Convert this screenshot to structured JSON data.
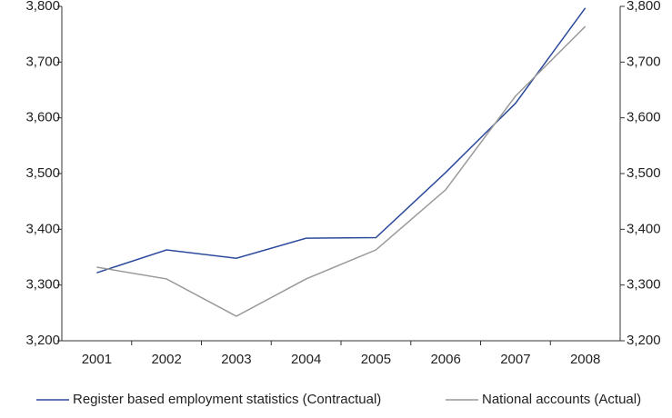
{
  "chart_data": {
    "type": "line",
    "categories": [
      "2001",
      "2002",
      "2003",
      "2004",
      "2005",
      "2006",
      "2007",
      "2008"
    ],
    "series": [
      {
        "name": "Register based employment statistics (Contractual)",
        "color": "#2b4a9b",
        "values": [
          3322,
          3363,
          3348,
          3384,
          3385,
          3502,
          3626,
          3797
        ]
      },
      {
        "name": "National accounts (Actual)",
        "color": "#999999",
        "values": [
          3332,
          3311,
          3244,
          3311,
          3363,
          3471,
          3639,
          3764
        ]
      }
    ],
    "ylim": [
      3200,
      3800
    ],
    "yticks": [
      {
        "value": 3200,
        "label": "3,200"
      },
      {
        "value": 3300,
        "label": "3,300"
      },
      {
        "value": 3400,
        "label": "3,400"
      },
      {
        "value": 3500,
        "label": "3,500"
      },
      {
        "value": 3600,
        "label": "3,600"
      },
      {
        "value": 3700,
        "label": "3,700"
      },
      {
        "value": 3800,
        "label": "3,800"
      }
    ],
    "y2lim": [
      3200,
      3800
    ],
    "y2ticks": [
      {
        "value": 3200,
        "label": "3,200"
      },
      {
        "value": 3300,
        "label": "3,300"
      },
      {
        "value": 3400,
        "label": "3,400"
      },
      {
        "value": 3500,
        "label": "3,500"
      },
      {
        "value": 3600,
        "label": "3,600"
      },
      {
        "value": 3700,
        "label": "3,700"
      },
      {
        "value": 3800,
        "label": "3,800"
      }
    ],
    "grid": false,
    "legend": "bottom"
  }
}
